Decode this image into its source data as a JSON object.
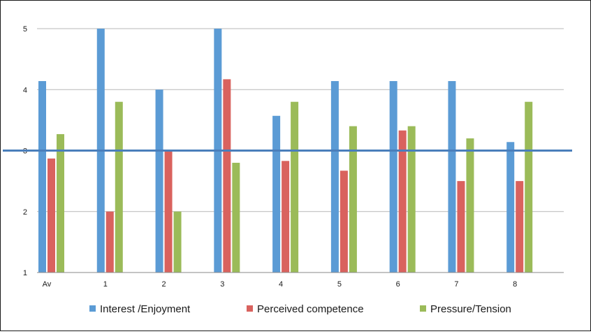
{
  "chart_data": {
    "type": "bar",
    "title": "",
    "xlabel": "",
    "ylabel": "",
    "categories": [
      "Av",
      "1",
      "2",
      "3",
      "4",
      "5",
      "6",
      "7",
      "8"
    ],
    "ylim": [
      1,
      5
    ],
    "yticks": [
      "1",
      "2",
      "3",
      "4",
      "5"
    ],
    "grid": true,
    "legend_position": "bottom",
    "reference_line": {
      "value": 3,
      "color": "#4a7ebb"
    },
    "series": [
      {
        "name": "Interest /Enjoyment",
        "color": "#5b9bd5",
        "values": [
          4.14,
          5.0,
          4.0,
          5.0,
          3.57,
          4.14,
          4.14,
          4.14,
          3.14
        ]
      },
      {
        "name": "Perceived competence",
        "color": "#d9625e",
        "values": [
          2.87,
          2.0,
          3.0,
          4.17,
          2.83,
          2.67,
          3.33,
          2.5,
          2.5
        ]
      },
      {
        "name": "Pressure/Tension",
        "color": "#9bbb59",
        "values": [
          3.27,
          3.8,
          2.0,
          2.8,
          3.8,
          3.4,
          3.4,
          3.2,
          3.8
        ]
      }
    ]
  }
}
